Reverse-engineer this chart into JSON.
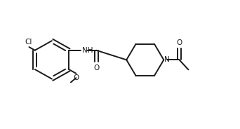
{
  "background": "#ffffff",
  "line_color": "#1a1a1a",
  "line_width": 1.4,
  "text_color": "#1a1a1a",
  "label_fontsize": 7.5,
  "xlim": [
    0,
    10
  ],
  "ylim": [
    0,
    5.5
  ],
  "figsize": [
    3.42,
    1.84
  ],
  "dpi": 100
}
